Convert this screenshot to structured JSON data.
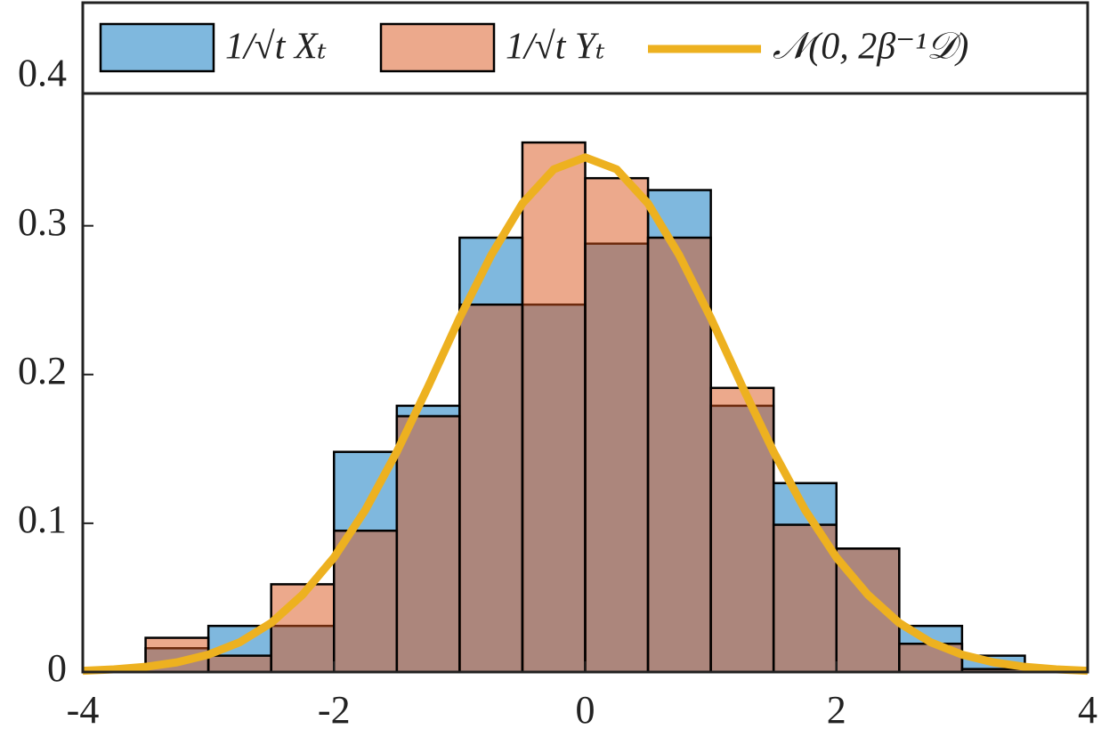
{
  "chart_data": {
    "type": "histogram",
    "bins": [
      -3.5,
      -3,
      -2.5,
      -2,
      -1.5,
      -1,
      -0.5,
      0,
      0.5,
      1,
      1.5,
      2,
      2.5,
      3,
      3.5
    ],
    "series": [
      {
        "name": "1/√t Xₜ",
        "color": "#0072BD",
        "values": [
          0.016,
          0.031,
          0.031,
          0.148,
          0.179,
          0.292,
          0.247,
          0.288,
          0.324,
          0.179,
          0.127,
          0.083,
          0.031,
          0.011
        ]
      },
      {
        "name": "1/√t Yₜ",
        "color": "#D95319",
        "values": [
          0.023,
          0.011,
          0.059,
          0.095,
          0.172,
          0.247,
          0.356,
          0.332,
          0.292,
          0.191,
          0.099,
          0.083,
          0.019,
          0.002
        ]
      }
    ],
    "curve": {
      "type": "line",
      "name": "𝒩(0, 2β⁻¹𝒟)",
      "color": "#EDB120",
      "x": [
        -4,
        -3.75,
        -3.5,
        -3.25,
        -3,
        -2.75,
        -2.5,
        -2.25,
        -2,
        -1.75,
        -1.5,
        -1.25,
        -1,
        -0.75,
        -0.5,
        -0.25,
        0,
        0.25,
        0.5,
        0.75,
        1,
        1.25,
        1.5,
        1.75,
        2,
        2.25,
        2.5,
        2.75,
        3,
        3.25,
        3.5,
        3.75,
        4
      ],
      "values": [
        0.0008,
        0.0018,
        0.0035,
        0.0065,
        0.0117,
        0.02,
        0.033,
        0.052,
        0.077,
        0.109,
        0.148,
        0.192,
        0.238,
        0.28,
        0.315,
        0.338,
        0.346,
        0.338,
        0.315,
        0.28,
        0.238,
        0.192,
        0.148,
        0.109,
        0.077,
        0.052,
        0.033,
        0.02,
        0.0117,
        0.0065,
        0.0035,
        0.0018,
        0.0008
      ]
    },
    "xlim": [
      -4,
      4
    ],
    "ylim": [
      0,
      0.45
    ],
    "xticks": [
      -4,
      -2,
      0,
      2,
      4
    ],
    "yticks": [
      0,
      0.1,
      0.2,
      0.3,
      0.4
    ],
    "grid": false,
    "legend": "top"
  }
}
